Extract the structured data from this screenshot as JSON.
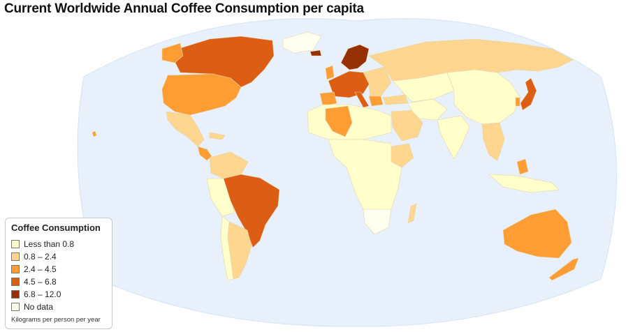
{
  "title": "Current Worldwide Annual Coffee Consumption per capita",
  "legend": {
    "title": "Coffee Consumption",
    "items": [
      {
        "label": "Less than 0.8",
        "color": "#ffffcc"
      },
      {
        "label": "0.8 – 2.4",
        "color": "#fed68f"
      },
      {
        "label": "2.4 – 4.5",
        "color": "#fd9d34"
      },
      {
        "label": "4.5 – 6.8",
        "color": "#dc5d14"
      },
      {
        "label": "6.8 – 12.0",
        "color": "#963005"
      },
      {
        "label": "No data",
        "color": "#fffff0"
      }
    ],
    "note": "Kilograms per person per year"
  },
  "colors": {
    "ocean": "#e8f1fb",
    "border": "#e6d3a8"
  }
}
